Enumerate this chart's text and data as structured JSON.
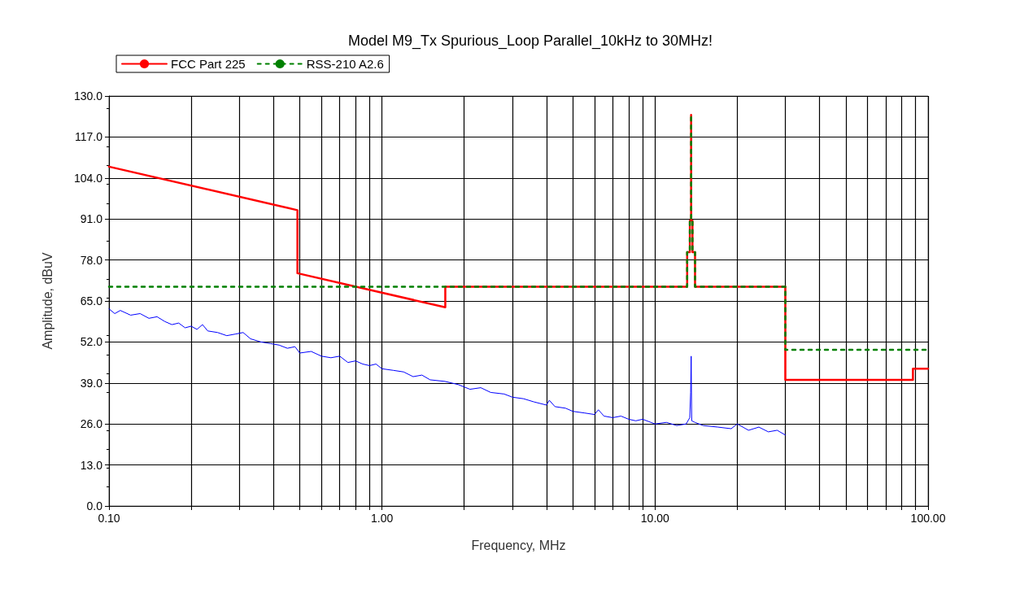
{
  "chart_data": {
    "type": "line",
    "title": "Model M9_Tx Spurious_Loop Parallel_10kHz to 30MHz!",
    "xlabel": "Frequency, MHz",
    "ylabel": "Amplitude, dBuV",
    "log": "x",
    "grid": true,
    "legend": "top left",
    "marker": "none",
    "xlim": [
      0.1,
      100
    ],
    "ylim": [
      0,
      130
    ],
    "xticks": [
      {
        "value": 0.1,
        "label": "0.10"
      },
      {
        "value": 0.2,
        "label": null
      },
      {
        "value": 0.3,
        "label": null
      },
      {
        "value": 0.4,
        "label": null
      },
      {
        "value": 0.5,
        "label": null
      },
      {
        "value": 0.6,
        "label": null
      },
      {
        "value": 0.7,
        "label": null
      },
      {
        "value": 0.8,
        "label": null
      },
      {
        "value": 0.9,
        "label": null
      },
      {
        "value": 1,
        "label": "1.00"
      },
      {
        "value": 2,
        "label": null
      },
      {
        "value": 3,
        "label": null
      },
      {
        "value": 4,
        "label": null
      },
      {
        "value": 5,
        "label": null
      },
      {
        "value": 6,
        "label": null
      },
      {
        "value": 7,
        "label": null
      },
      {
        "value": 8,
        "label": null
      },
      {
        "value": 9,
        "label": null
      },
      {
        "value": 10,
        "label": "10.00"
      },
      {
        "value": 20,
        "label": null
      },
      {
        "value": 30,
        "label": null
      },
      {
        "value": 40,
        "label": null
      },
      {
        "value": 50,
        "label": null
      },
      {
        "value": 60,
        "label": null
      },
      {
        "value": 70,
        "label": null
      },
      {
        "value": 80,
        "label": null
      },
      {
        "value": 90,
        "label": null
      },
      {
        "value": 100,
        "label": "100.00"
      }
    ],
    "yticks": [
      {
        "value": 0,
        "label": "0.0"
      },
      {
        "value": 13,
        "label": "13.0"
      },
      {
        "value": 26,
        "label": "26.0"
      },
      {
        "value": 39,
        "label": "39.0"
      },
      {
        "value": 52,
        "label": "52.0"
      },
      {
        "value": 65,
        "label": "65.0"
      },
      {
        "value": 78,
        "label": "78.0"
      },
      {
        "value": 91,
        "label": "91.0"
      },
      {
        "value": 104,
        "label": "104.0"
      },
      {
        "value": 117,
        "label": "117.0"
      },
      {
        "value": 130,
        "label": "130.0"
      }
    ],
    "series": [
      {
        "name": "FCC Part 225",
        "color": "#ff0000",
        "line_style": "solid",
        "x": [
          0.1,
          0.49,
          0.49,
          1.705,
          1.705,
          13.11,
          13.11,
          13.41,
          13.41,
          13.553,
          13.553,
          13.567,
          13.567,
          13.71,
          13.71,
          14.01,
          14.01,
          30,
          30,
          88,
          88,
          100
        ],
        "values": [
          107.6,
          93.8,
          73.8,
          63,
          69.5,
          69.5,
          80.5,
          80.5,
          90.5,
          90.5,
          124,
          124,
          90.5,
          90.5,
          80.5,
          80.5,
          69.5,
          69.5,
          40,
          40,
          43.5,
          43.5
        ]
      },
      {
        "name": "RSS-210 A2.6",
        "color": "#008000",
        "line_style": "dashed",
        "x": [
          0.1,
          13.11,
          13.11,
          13.41,
          13.41,
          13.553,
          13.553,
          13.567,
          13.567,
          13.71,
          13.71,
          14.01,
          14.01,
          30,
          30,
          100
        ],
        "values": [
          69.5,
          69.5,
          80.5,
          80.5,
          90.5,
          90.5,
          124,
          124,
          90.5,
          90.5,
          80.5,
          80.5,
          69.5,
          69.5,
          49.5,
          49.5
        ]
      },
      {
        "color": "#0000ff",
        "line_style": "solid",
        "x": [
          0.1,
          0.105,
          0.11,
          0.12,
          0.13,
          0.14,
          0.15,
          0.16,
          0.17,
          0.18,
          0.19,
          0.2,
          0.21,
          0.22,
          0.23,
          0.25,
          0.27,
          0.29,
          0.31,
          0.33,
          0.36,
          0.39,
          0.42,
          0.45,
          0.48,
          0.5,
          0.55,
          0.6,
          0.65,
          0.7,
          0.75,
          0.8,
          0.85,
          0.9,
          0.95,
          1.0,
          1.1,
          1.2,
          1.3,
          1.4,
          1.5,
          1.7,
          1.9,
          2.1,
          2.3,
          2.5,
          2.8,
          3.0,
          3.3,
          3.6,
          4.0,
          4.1,
          4.3,
          4.7,
          5.0,
          5.5,
          6.0,
          6.2,
          6.5,
          7.0,
          7.5,
          8.0,
          8.5,
          9.0,
          10,
          11,
          12,
          13,
          13.4,
          13.5,
          13.56,
          13.62,
          14,
          15,
          17,
          19,
          20,
          22,
          24,
          26,
          28,
          30
        ],
        "values": [
          62.5,
          61,
          62,
          60.5,
          61,
          59.5,
          60,
          58.5,
          57.5,
          58,
          56.5,
          57,
          56,
          57.5,
          55.5,
          55,
          54,
          54.5,
          55,
          53,
          52,
          51.5,
          51,
          50,
          50.5,
          48.5,
          49,
          47.5,
          47,
          47.5,
          45.5,
          46,
          45,
          44.5,
          45,
          43.5,
          43,
          42.5,
          41,
          41.5,
          40,
          39.5,
          38.5,
          37,
          37.5,
          36,
          35.5,
          34.5,
          34,
          33,
          32,
          33.5,
          31.5,
          31,
          30,
          29.5,
          29,
          30.5,
          28.5,
          28,
          28.5,
          27.5,
          27,
          27.5,
          26,
          26.5,
          25.5,
          26,
          28,
          36,
          47.5,
          27,
          26.5,
          25.5,
          25,
          24.5,
          26,
          24,
          25,
          23.5,
          24,
          22.5
        ]
      }
    ]
  }
}
